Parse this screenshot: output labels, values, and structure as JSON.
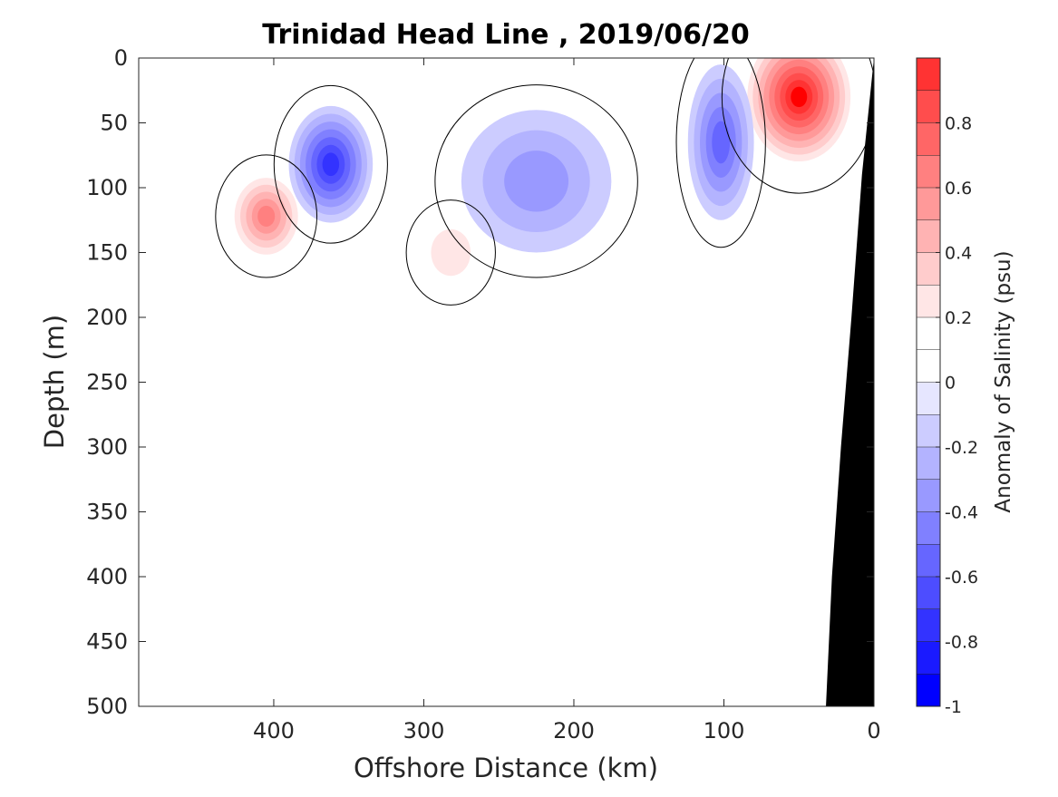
{
  "chart_data": {
    "type": "heatmap",
    "title": "Trinidad Head Line , 2019/06/20",
    "xlabel": "Offshore Distance (km)",
    "ylabel": "Depth (m)",
    "xlim": [
      490,
      0
    ],
    "x_reversed": true,
    "ylim": [
      0,
      500
    ],
    "y_reversed": true,
    "x_ticks": [
      400,
      300,
      200,
      100,
      0
    ],
    "y_ticks": [
      0,
      50,
      100,
      150,
      200,
      250,
      300,
      350,
      400,
      450,
      500
    ],
    "grid": false,
    "colorbar": {
      "label": "Anomaly of Salinity (psu)",
      "range": [
        -1,
        1
      ],
      "ticks": [
        -1,
        -0.8,
        -0.6,
        -0.4,
        -0.2,
        0,
        0.2,
        0.4,
        0.6,
        0.8
      ],
      "levels": [
        -1,
        -0.9,
        -0.8,
        -0.7,
        -0.6,
        -0.5,
        -0.4,
        -0.3,
        -0.2,
        -0.1,
        0,
        0.1,
        0.2,
        0.3,
        0.4,
        0.5,
        0.6,
        0.7,
        0.8,
        0.9,
        1
      ],
      "colors": [
        "#0000ff",
        "#1a1aff",
        "#3333ff",
        "#4d4dff",
        "#6666ff",
        "#8080ff",
        "#9999ff",
        "#b3b3ff",
        "#ccccff",
        "#e6e6ff",
        "#ffffff",
        "#ffffff",
        "#ffe6e6",
        "#ffcccc",
        "#ffb3b3",
        "#ff9999",
        "#ff8080",
        "#ff6666",
        "#ff4d4d",
        "#ff3333",
        "#ff0000"
      ]
    },
    "features": [
      {
        "kind": "positive",
        "x": 405,
        "y": 122,
        "peak": 0.6,
        "rx": 25,
        "ry": 35
      },
      {
        "kind": "positive",
        "x": 282,
        "y": 150,
        "peak": 0.2,
        "rx": 22,
        "ry": 30
      },
      {
        "kind": "positive",
        "x": 50,
        "y": 30,
        "peak": 1.0,
        "rx": 38,
        "ry": 55
      },
      {
        "kind": "negative",
        "x": 362,
        "y": 82,
        "peak": -0.7,
        "rx": 28,
        "ry": 45
      },
      {
        "kind": "negative",
        "x": 225,
        "y": 95,
        "peak": -0.3,
        "rx": 50,
        "ry": 55
      },
      {
        "kind": "negative",
        "x": 102,
        "y": 65,
        "peak": -0.45,
        "rx": 22,
        "ry": 60
      }
    ],
    "bathymetry": {
      "color": "#000000",
      "points": [
        [
          0,
          0
        ],
        [
          8,
          90
        ],
        [
          15,
          200
        ],
        [
          22,
          300
        ],
        [
          28,
          400
        ],
        [
          32,
          500
        ],
        [
          0,
          500
        ]
      ]
    }
  }
}
